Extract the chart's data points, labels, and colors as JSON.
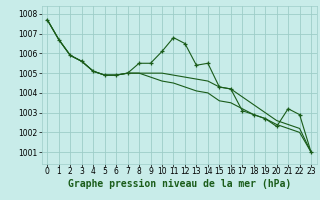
{
  "background_color": "#c8ece9",
  "grid_color": "#9ecdc8",
  "line_color": "#1a5c1a",
  "xlabel": "Graphe pression niveau de la mer (hPa)",
  "xlabel_fontsize": 7,
  "tick_fontsize": 5.5,
  "ylim": [
    1000.4,
    1008.4
  ],
  "xlim": [
    -0.5,
    23.5
  ],
  "yticks": [
    1001,
    1002,
    1003,
    1004,
    1005,
    1006,
    1007,
    1008
  ],
  "xticks": [
    0,
    1,
    2,
    3,
    4,
    5,
    6,
    7,
    8,
    9,
    10,
    11,
    12,
    13,
    14,
    15,
    16,
    17,
    18,
    19,
    20,
    21,
    22,
    23
  ],
  "series": [
    [
      1007.7,
      1006.7,
      1005.9,
      1005.6,
      1005.1,
      1004.9,
      1004.9,
      1005.0,
      1005.5,
      1005.5,
      1006.1,
      1006.8,
      1006.5,
      1005.4,
      1005.5,
      1004.3,
      1004.2,
      1003.1,
      1002.9,
      1002.7,
      1002.3,
      1003.2,
      1002.9,
      1001.0
    ],
    [
      1007.7,
      1006.7,
      1005.9,
      1005.6,
      1005.1,
      1004.9,
      1004.9,
      1005.0,
      1005.0,
      1005.0,
      1005.0,
      1004.9,
      1004.8,
      1004.7,
      1004.6,
      1004.3,
      1004.2,
      1003.8,
      1003.4,
      1003.0,
      1002.6,
      1002.4,
      1002.2,
      1001.0
    ],
    [
      1007.7,
      1006.7,
      1005.9,
      1005.6,
      1005.1,
      1004.9,
      1004.9,
      1005.0,
      1005.0,
      1004.8,
      1004.6,
      1004.5,
      1004.3,
      1004.1,
      1004.0,
      1003.6,
      1003.5,
      1003.2,
      1002.9,
      1002.7,
      1002.4,
      1002.2,
      1002.0,
      1001.0
    ]
  ]
}
